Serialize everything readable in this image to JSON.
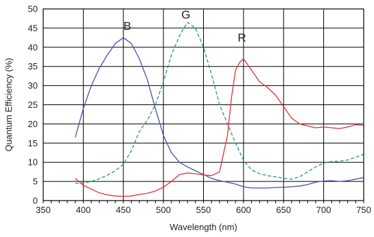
{
  "chart_data": {
    "type": "line",
    "xlabel": "Wavelength (nm)",
    "ylabel": "Quantum Efficiency (%)",
    "xlim": [
      350,
      750
    ],
    "ylim": [
      0,
      50
    ],
    "x_ticks": [
      "350",
      "400",
      "450",
      "500",
      "550",
      "600",
      "650",
      "700",
      "750"
    ],
    "y_ticks": [
      "0",
      "5",
      "10",
      "15",
      "20",
      "25",
      "30",
      "35",
      "40",
      "45",
      "50"
    ],
    "grid": true,
    "series": [
      {
        "name": "B",
        "color": "#4a4fa8",
        "style": "solid",
        "label_at": [
          455,
          44.5
        ],
        "x": [
          390,
          400,
          410,
          420,
          430,
          440,
          450,
          460,
          470,
          480,
          490,
          500,
          510,
          520,
          530,
          540,
          550,
          560,
          570,
          580,
          590,
          600,
          610,
          620,
          630,
          640,
          650,
          660,
          670,
          680,
          690,
          700,
          710,
          720,
          730,
          740,
          750
        ],
        "y": [
          16.5,
          24,
          30,
          34.5,
          38,
          41,
          42.5,
          41,
          37,
          31.5,
          24,
          17,
          12.5,
          10,
          8.8,
          7.8,
          6.8,
          5.8,
          5.2,
          4.8,
          4.3,
          3.6,
          3.3,
          3.3,
          3.3,
          3.4,
          3.5,
          3.6,
          3.8,
          4.2,
          4.8,
          5.1,
          5.2,
          5.0,
          5.2,
          5.6,
          6.0
        ]
      },
      {
        "name": "G",
        "color": "#1a9a70",
        "style": "dashed",
        "label_at": [
          528,
          47.5
        ],
        "x": [
          390,
          400,
          410,
          420,
          430,
          440,
          450,
          460,
          470,
          480,
          490,
          500,
          510,
          520,
          530,
          540,
          550,
          560,
          570,
          580,
          590,
          600,
          610,
          620,
          630,
          640,
          650,
          660,
          670,
          680,
          690,
          700,
          710,
          720,
          730,
          740,
          750
        ],
        "y": [
          4.5,
          4.6,
          5.0,
          5.7,
          6.6,
          7.8,
          9.5,
          13,
          18,
          21,
          25,
          31,
          38,
          43,
          46.5,
          45,
          40,
          33,
          25,
          20,
          15,
          10.5,
          8,
          7,
          6.5,
          6.2,
          5.8,
          5.6,
          6.2,
          7.5,
          8.8,
          9.8,
          10.2,
          10.3,
          10.6,
          11.3,
          12.1
        ]
      },
      {
        "name": "R",
        "color": "#e03030",
        "style": "solid",
        "label_at": [
          598,
          41.5
        ],
        "x": [
          390,
          400,
          410,
          420,
          430,
          440,
          450,
          460,
          470,
          480,
          490,
          500,
          510,
          520,
          530,
          540,
          550,
          560,
          570,
          580,
          585,
          590,
          595,
          600,
          610,
          620,
          630,
          640,
          650,
          660,
          670,
          680,
          690,
          700,
          710,
          720,
          730,
          740,
          750
        ],
        "y": [
          5.8,
          4.0,
          3.0,
          2.0,
          1.5,
          1.2,
          1.1,
          1.2,
          1.6,
          1.9,
          2.5,
          3.5,
          5.0,
          6.8,
          7.2,
          7.0,
          6.7,
          6.5,
          7.5,
          17,
          27,
          34,
          36,
          37,
          34,
          31,
          29.5,
          27.5,
          24.5,
          21.5,
          20,
          19.5,
          19,
          19.2,
          19,
          18.8,
          19.2,
          19.8,
          19.6
        ]
      }
    ]
  }
}
